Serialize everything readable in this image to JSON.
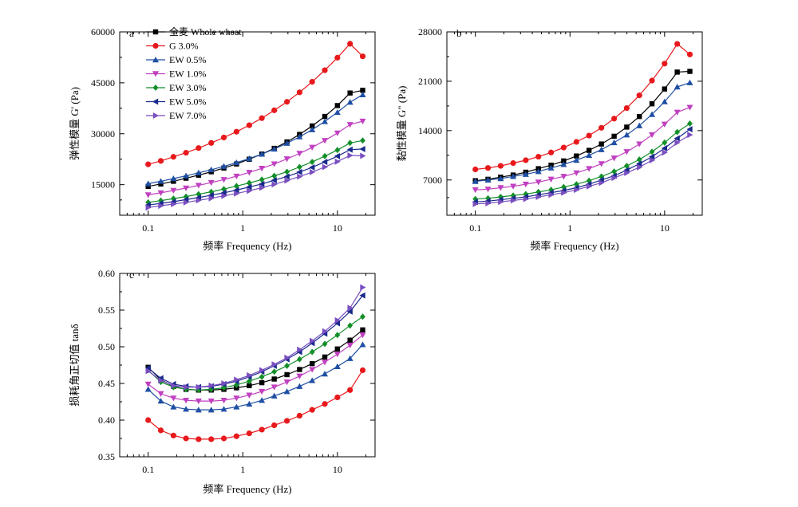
{
  "series_styles": [
    {
      "name": "全麦 Whole wheat",
      "color": "#000000",
      "marker": "square"
    },
    {
      "name": "G 3.0%",
      "color": "#e8191c",
      "marker": "circle"
    },
    {
      "name": "EW 0.5%",
      "color": "#1f4fa3",
      "marker": "triangle-up"
    },
    {
      "name": "EW 1.0%",
      "color": "#c040c0",
      "marker": "triangle-down"
    },
    {
      "name": "EW 3.0%",
      "color": "#138f2a",
      "marker": "diamond"
    },
    {
      "name": "EW 5.0%",
      "color": "#1a2a8c",
      "marker": "triangle-left"
    },
    {
      "name": "EW 7.0%",
      "color": "#7a4fc0",
      "marker": "triangle-right"
    }
  ],
  "chart_data": [
    {
      "type": "line",
      "panel": "a",
      "xlabel": "频率 Frequency (Hz)",
      "ylabel": "弹性模量 G' (Pa)",
      "xscale": "log",
      "xlim": [
        0.05,
        25
      ],
      "ylim": [
        6000,
        60000
      ],
      "xticks": [
        0.1,
        1,
        10
      ],
      "xtick_labels": [
        "0.1",
        "1",
        "10"
      ],
      "yticks": [
        15000,
        30000,
        45000,
        60000
      ],
      "ytick_labels": [
        "15000",
        "30000",
        "45000",
        "60000"
      ],
      "legend": "top-left",
      "x": [
        0.1,
        0.136,
        0.185,
        0.251,
        0.341,
        0.464,
        0.631,
        0.858,
        1.17,
        1.59,
        2.15,
        2.93,
        3.98,
        5.41,
        7.36,
        10.0,
        13.6,
        18.5
      ],
      "series": [
        {
          "name": "全麦 Whole wheat",
          "values": [
            14500,
            15200,
            16000,
            16900,
            17800,
            18800,
            19900,
            21100,
            22500,
            24000,
            25700,
            27600,
            29800,
            32300,
            35100,
            38300,
            42000,
            42800
          ]
        },
        {
          "name": "G 3.0%",
          "values": [
            21000,
            22000,
            23200,
            24400,
            25800,
            27300,
            28900,
            30600,
            32500,
            34600,
            36900,
            39400,
            42200,
            45300,
            48700,
            52400,
            56500,
            52800
          ]
        },
        {
          "name": "EW 0.5%",
          "values": [
            15300,
            16000,
            16800,
            17600,
            18500,
            19400,
            20400,
            21500,
            22700,
            24000,
            25500,
            27200,
            29100,
            31200,
            33600,
            36300,
            39300,
            41500
          ]
        },
        {
          "name": "EW 1.0%",
          "values": [
            12000,
            12600,
            13300,
            14000,
            14800,
            15600,
            16500,
            17500,
            18600,
            19800,
            21100,
            22600,
            24200,
            26000,
            28000,
            30200,
            32700,
            33700
          ]
        },
        {
          "name": "EW 3.0%",
          "values": [
            9800,
            10300,
            10900,
            11500,
            12200,
            12900,
            13700,
            14600,
            15500,
            16500,
            17600,
            18800,
            20200,
            21700,
            23400,
            25200,
            27300,
            28000
          ]
        },
        {
          "name": "EW 5.0%",
          "values": [
            9000,
            9500,
            10000,
            10600,
            11200,
            11900,
            12600,
            13400,
            14300,
            15200,
            16300,
            17400,
            18700,
            20100,
            21700,
            23400,
            25300,
            25500
          ]
        },
        {
          "name": "EW 7.0%",
          "values": [
            8300,
            8800,
            9300,
            9800,
            10400,
            11000,
            11700,
            12400,
            13200,
            14100,
            15100,
            16200,
            17400,
            18700,
            20200,
            21800,
            23600,
            23500
          ]
        }
      ]
    },
    {
      "type": "line",
      "panel": "b",
      "xlabel": "频率 Frequency (Hz)",
      "ylabel": "黏性模量 G\" (Pa)",
      "xscale": "log",
      "xlim": [
        0.05,
        25
      ],
      "ylim": [
        2000,
        28000
      ],
      "xticks": [
        0.1,
        1,
        10
      ],
      "xtick_labels": [
        "0.1",
        "1",
        "10"
      ],
      "yticks": [
        7000,
        14000,
        21000,
        28000
      ],
      "ytick_labels": [
        "7000",
        "14000",
        "21000",
        "28000"
      ],
      "x": [
        0.1,
        0.136,
        0.185,
        0.251,
        0.341,
        0.464,
        0.631,
        0.858,
        1.17,
        1.59,
        2.15,
        2.93,
        3.98,
        5.41,
        7.36,
        10.0,
        13.6,
        18.5
      ],
      "series": [
        {
          "name": "全麦 Whole wheat",
          "values": [
            6900,
            7100,
            7400,
            7700,
            8100,
            8600,
            9100,
            9700,
            10400,
            11200,
            12100,
            13200,
            14500,
            16000,
            17800,
            19900,
            22300,
            22400
          ]
        },
        {
          "name": "G 3.0%",
          "values": [
            8500,
            8700,
            9000,
            9400,
            9800,
            10300,
            10900,
            11600,
            12400,
            13300,
            14400,
            15700,
            17200,
            19000,
            21100,
            23500,
            26300,
            24800
          ]
        },
        {
          "name": "EW 0.5%",
          "values": [
            6800,
            7000,
            7200,
            7500,
            7800,
            8200,
            8700,
            9200,
            9800,
            10500,
            11300,
            12300,
            13400,
            14700,
            16300,
            18100,
            20200,
            20800
          ]
        },
        {
          "name": "EW 1.0%",
          "values": [
            5600,
            5700,
            5900,
            6100,
            6400,
            6700,
            7100,
            7500,
            8000,
            8600,
            9300,
            10100,
            11000,
            12100,
            13400,
            14900,
            16600,
            17300
          ]
        },
        {
          "name": "EW 3.0%",
          "values": [
            4300,
            4400,
            4600,
            4800,
            5000,
            5300,
            5600,
            6000,
            6400,
            6900,
            7500,
            8200,
            9000,
            9900,
            11000,
            12300,
            13800,
            15000
          ]
        },
        {
          "name": "EW 5.0%",
          "values": [
            3900,
            4000,
            4200,
            4400,
            4600,
            4900,
            5200,
            5500,
            5900,
            6400,
            7000,
            7600,
            8400,
            9300,
            10300,
            11500,
            12900,
            14200
          ]
        },
        {
          "name": "EW 7.0%",
          "values": [
            3600,
            3700,
            3900,
            4100,
            4300,
            4600,
            4900,
            5200,
            5600,
            6100,
            6600,
            7300,
            8000,
            8800,
            9800,
            10900,
            12300,
            13400
          ]
        }
      ]
    },
    {
      "type": "line",
      "panel": "c",
      "xlabel": "频率 Frequency (Hz)",
      "ylabel": "损耗角正切值 tanδ",
      "xscale": "log",
      "xlim": [
        0.05,
        25
      ],
      "ylim": [
        0.35,
        0.6
      ],
      "xticks": [
        0.1,
        1,
        10
      ],
      "xtick_labels": [
        "0.1",
        "1",
        "10"
      ],
      "yticks": [
        0.35,
        0.4,
        0.45,
        0.5,
        0.55,
        0.6
      ],
      "ytick_labels": [
        "0.35",
        "0.40",
        "0.45",
        "0.50",
        "0.55",
        "0.60"
      ],
      "x": [
        0.1,
        0.136,
        0.185,
        0.251,
        0.341,
        0.464,
        0.631,
        0.858,
        1.17,
        1.59,
        2.15,
        2.93,
        3.98,
        5.41,
        7.36,
        10.0,
        13.6,
        18.5
      ],
      "series": [
        {
          "name": "全麦 Whole wheat",
          "values": [
            0.472,
            0.455,
            0.446,
            0.442,
            0.441,
            0.441,
            0.442,
            0.444,
            0.447,
            0.451,
            0.456,
            0.462,
            0.469,
            0.477,
            0.486,
            0.497,
            0.509,
            0.523
          ]
        },
        {
          "name": "G 3.0%",
          "values": [
            0.4,
            0.386,
            0.379,
            0.375,
            0.374,
            0.374,
            0.375,
            0.378,
            0.382,
            0.387,
            0.393,
            0.399,
            0.406,
            0.414,
            0.422,
            0.431,
            0.441,
            0.468
          ]
        },
        {
          "name": "EW 0.5%",
          "values": [
            0.442,
            0.426,
            0.418,
            0.415,
            0.414,
            0.414,
            0.415,
            0.418,
            0.422,
            0.427,
            0.433,
            0.439,
            0.446,
            0.454,
            0.463,
            0.473,
            0.484,
            0.503
          ]
        },
        {
          "name": "EW 1.0%",
          "values": [
            0.449,
            0.436,
            0.43,
            0.427,
            0.426,
            0.426,
            0.427,
            0.43,
            0.434,
            0.439,
            0.445,
            0.452,
            0.46,
            0.469,
            0.479,
            0.49,
            0.502,
            0.516
          ]
        },
        {
          "name": "EW 3.0%",
          "values": [
            0.468,
            0.452,
            0.445,
            0.442,
            0.441,
            0.442,
            0.444,
            0.448,
            0.453,
            0.459,
            0.466,
            0.474,
            0.483,
            0.493,
            0.504,
            0.516,
            0.529,
            0.541
          ]
        },
        {
          "name": "EW 5.0%",
          "values": [
            0.471,
            0.457,
            0.449,
            0.446,
            0.445,
            0.446,
            0.449,
            0.453,
            0.459,
            0.466,
            0.474,
            0.483,
            0.493,
            0.505,
            0.518,
            0.532,
            0.548,
            0.57
          ]
        },
        {
          "name": "EW 7.0%",
          "values": [
            0.467,
            0.454,
            0.447,
            0.445,
            0.445,
            0.447,
            0.45,
            0.455,
            0.461,
            0.468,
            0.476,
            0.485,
            0.496,
            0.508,
            0.521,
            0.536,
            0.553,
            0.581
          ]
        }
      ]
    }
  ]
}
